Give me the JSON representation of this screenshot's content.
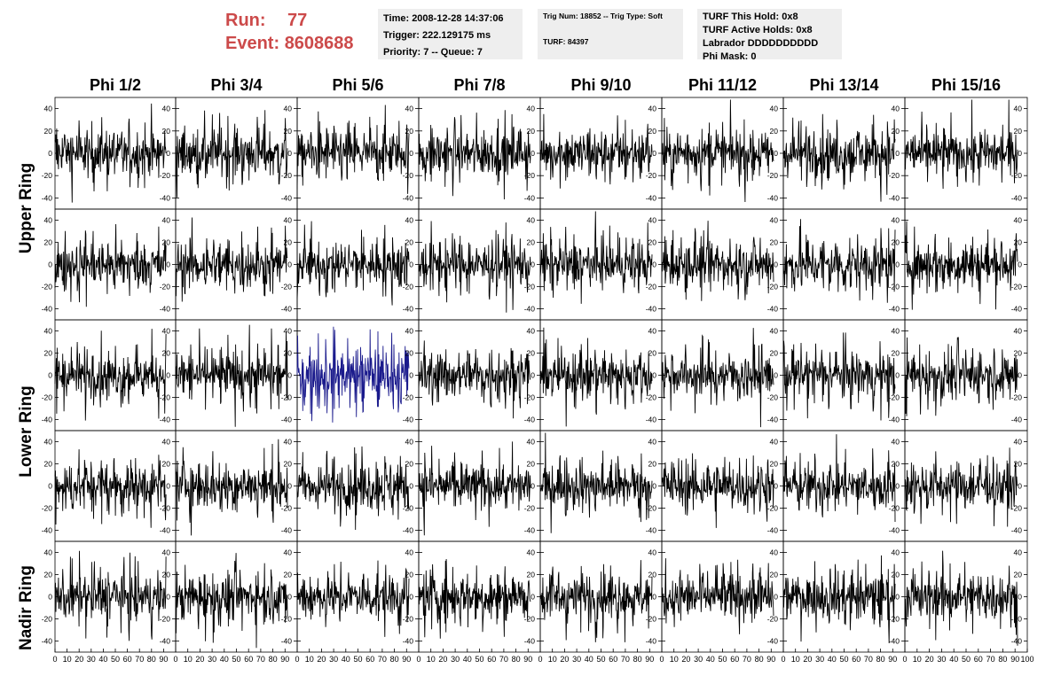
{
  "run": {
    "run_label": "Run:",
    "run_value": "77",
    "event_label": "Event:",
    "event_value": "8608688"
  },
  "info": {
    "time": "Time: 2008-12-28 14:37:06",
    "trigger": "Trigger: 222.129175 ms",
    "priority": "Priority: 7 -- Queue: 7",
    "trig_num": "Trig Num: 18852 -- Trig Type: Soft",
    "turf": "TURF: 84397",
    "turf_hold": "TURF This Hold: 0x8",
    "turf_active": "TURF Active Holds: 0x8",
    "labrador": "Labrador DDDDDDDDDD",
    "phi_mask": "Phi Mask: 0"
  },
  "columns": [
    "Phi 1/2",
    "Phi 3/4",
    "Phi 5/6",
    "Phi 7/8",
    "Phi 9/10",
    "Phi 11/12",
    "Phi 13/14",
    "Phi 15/16"
  ],
  "row_labels": [
    "Upper Ring",
    "Lower Ring",
    "Nadir Ring"
  ],
  "colors": {
    "trace": "#000000",
    "highlight_trace": "#1a1a8c",
    "run_text": "#cc4a4a",
    "info_bg": "#eeeeee"
  },
  "chart_data": {
    "type": "line",
    "grid_rows": 5,
    "grid_cols": 8,
    "y_ticks": [
      "40",
      "20",
      "0",
      "-20",
      "-40"
    ],
    "y_tick_values": [
      40,
      20,
      0,
      -20,
      -40
    ],
    "ylim": [
      -50,
      50
    ],
    "x_ticks": [
      "0",
      "10",
      "20",
      "30",
      "40",
      "50",
      "60",
      "70",
      "80",
      "90",
      "100"
    ],
    "x_tick_values": [
      0,
      10,
      20,
      30,
      40,
      50,
      60,
      70,
      80,
      90,
      100
    ],
    "xlim": [
      0,
      100
    ],
    "highlighted_panel": {
      "row": 2,
      "col": 2
    },
    "series_amplitude": 18,
    "points_per_trace": 260
  }
}
